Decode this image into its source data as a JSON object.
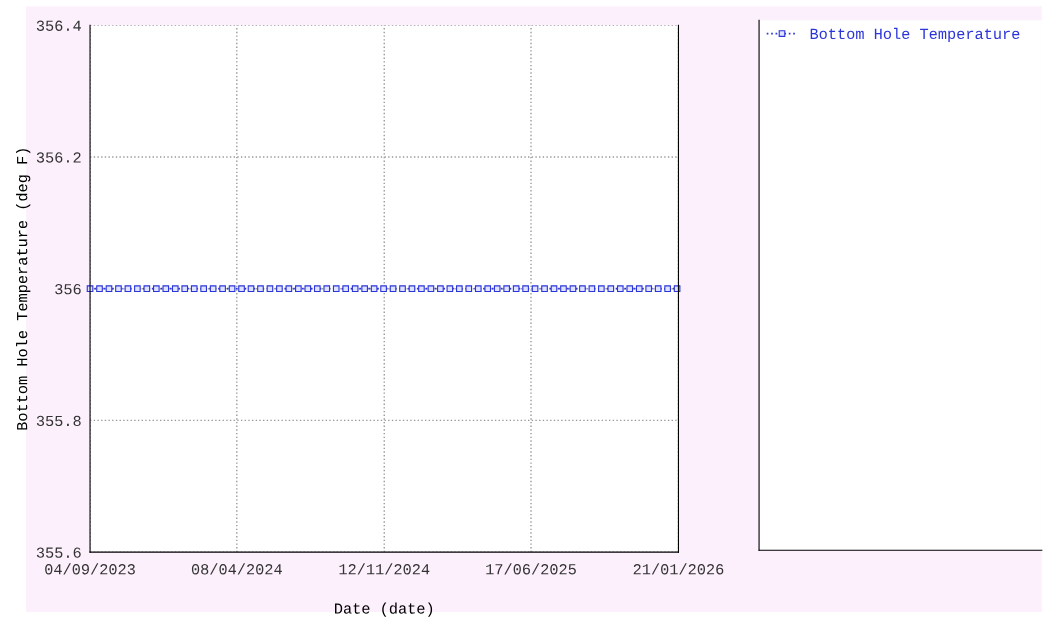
{
  "chart_data": {
    "type": "line",
    "xlabel": "Date (date)",
    "ylabel": "Bottom Hole Temperature (deg F)",
    "x": [
      "2023-09-04",
      "2023-09-18",
      "2023-10-02",
      "2023-10-16",
      "2023-10-30",
      "2023-11-13",
      "2023-11-27",
      "2023-12-11",
      "2023-12-25",
      "2024-01-08",
      "2024-01-22",
      "2024-02-05",
      "2024-02-19",
      "2024-03-04",
      "2024-03-18",
      "2024-04-01",
      "2024-04-15",
      "2024-04-29",
      "2024-05-13",
      "2024-05-27",
      "2024-06-10",
      "2024-06-24",
      "2024-07-08",
      "2024-07-22",
      "2024-08-05",
      "2024-08-19",
      "2024-09-02",
      "2024-09-16",
      "2024-09-30",
      "2024-10-14",
      "2024-10-28",
      "2024-11-11",
      "2024-11-25",
      "2024-12-09",
      "2024-12-23",
      "2025-01-06",
      "2025-01-20",
      "2025-02-03",
      "2025-02-17",
      "2025-03-03",
      "2025-03-17",
      "2025-03-31",
      "2025-04-14",
      "2025-04-28",
      "2025-05-12",
      "2025-05-26",
      "2025-06-09",
      "2025-06-23",
      "2025-07-07",
      "2025-07-21",
      "2025-08-04",
      "2025-08-18",
      "2025-09-01",
      "2025-09-15",
      "2025-09-29",
      "2025-10-13",
      "2025-10-27",
      "2025-11-10",
      "2025-11-24",
      "2025-12-08",
      "2025-12-22",
      "2026-01-05",
      "2026-01-19"
    ],
    "series": [
      {
        "name": "Bottom Hole Temperature",
        "color": "#2b35d8",
        "values": [
          356,
          356,
          356,
          356,
          356,
          356,
          356,
          356,
          356,
          356,
          356,
          356,
          356,
          356,
          356,
          356,
          356,
          356,
          356,
          356,
          356,
          356,
          356,
          356,
          356,
          356,
          356,
          356,
          356,
          356,
          356,
          356,
          356,
          356,
          356,
          356,
          356,
          356,
          356,
          356,
          356,
          356,
          356,
          356,
          356,
          356,
          356,
          356,
          356,
          356,
          356,
          356,
          356,
          356,
          356,
          356,
          356,
          356,
          356,
          356,
          356,
          356,
          356
        ]
      }
    ],
    "xlim": [
      "2023-09-04",
      "2026-01-21"
    ],
    "xticks": [
      {
        "value": "2023-09-04",
        "label": "04/09/2023"
      },
      {
        "value": "2024-04-08",
        "label": "08/04/2024"
      },
      {
        "value": "2024-11-12",
        "label": "12/11/2024"
      },
      {
        "value": "2025-06-17",
        "label": "17/06/2025"
      },
      {
        "value": "2026-01-21",
        "label": "21/01/2026"
      }
    ],
    "ylim": [
      355.6,
      356.4
    ],
    "yticks": [
      355.6,
      355.8,
      356,
      356.2,
      356.4
    ],
    "grid": true,
    "legend": "right",
    "marker": "square",
    "line_style": "dotted"
  }
}
